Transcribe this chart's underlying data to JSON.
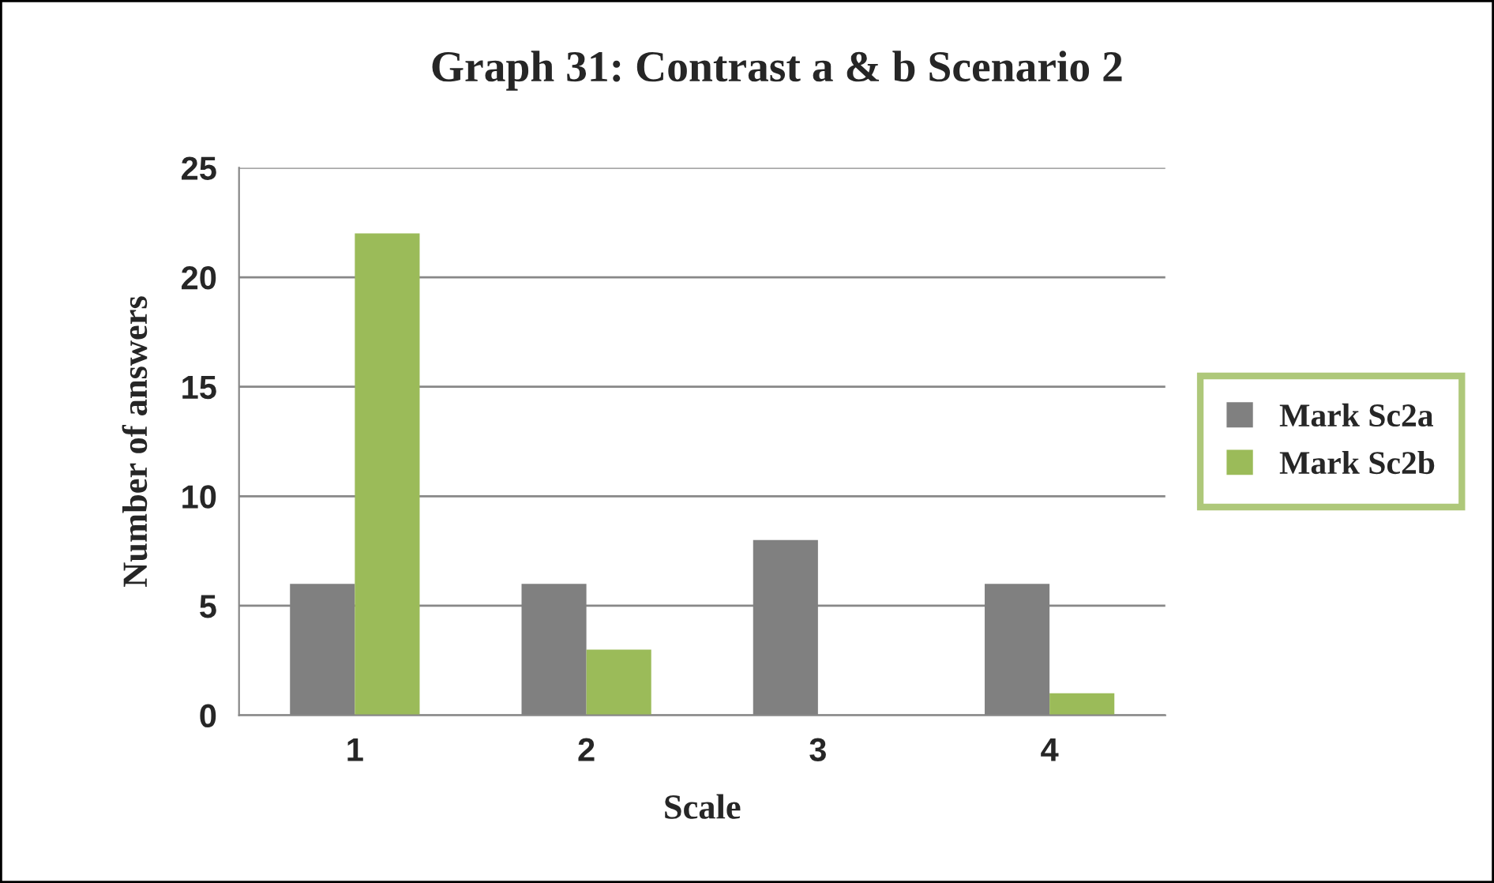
{
  "chart_data": {
    "type": "bar",
    "title": "Graph 31: Contrast a & b Scenario 2",
    "xlabel": "Scale",
    "ylabel": "Number of answers",
    "categories": [
      "1",
      "2",
      "3",
      "4"
    ],
    "series": [
      {
        "name": "Mark Sc2a",
        "color": "#808080",
        "values": [
          6,
          6,
          8,
          6
        ]
      },
      {
        "name": "Mark Sc2b",
        "color": "#9bbb59",
        "values": [
          22,
          3,
          0,
          1
        ]
      }
    ],
    "ylim": [
      0,
      25
    ],
    "yticks": [
      0,
      5,
      10,
      15,
      20,
      25
    ],
    "grid": "y",
    "legend": "right"
  }
}
